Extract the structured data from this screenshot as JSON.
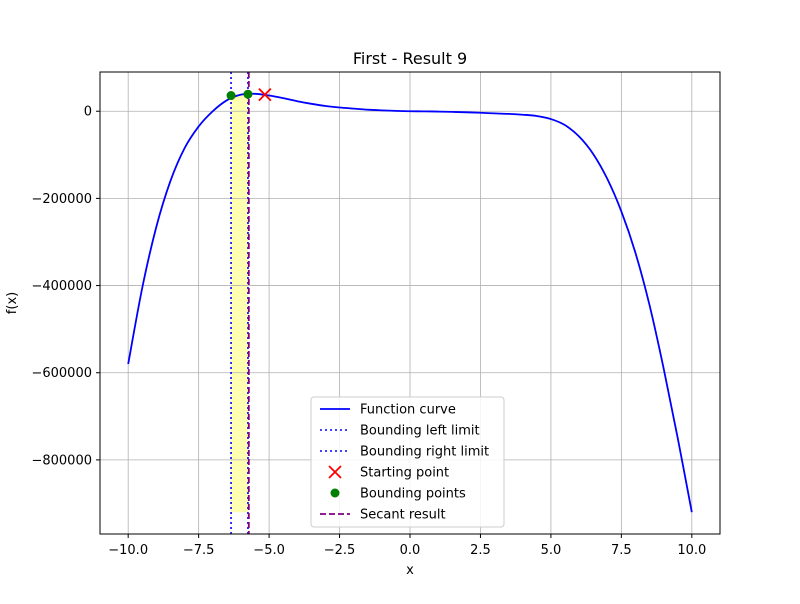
{
  "chart_data": {
    "type": "line",
    "title": "First - Result 9",
    "xlabel": "x",
    "ylabel": "f(x)",
    "xlim": [
      -11.0,
      11.0
    ],
    "ylim": [
      -970000,
      90000
    ],
    "grid": true,
    "legend_position": "lower-center",
    "x_ticks": [
      -10,
      -7.5,
      -5,
      -2.5,
      0,
      2.5,
      5,
      7.5,
      10
    ],
    "x_tick_labels": [
      "−10.0",
      "−7.5",
      "−5.0",
      "−2.5",
      "0.0",
      "2.5",
      "5.0",
      "7.5",
      "10.0"
    ],
    "y_ticks": [
      0,
      -200000,
      -400000,
      -600000,
      -800000
    ],
    "y_tick_labels": [
      "0",
      "−200000",
      "−400000",
      "−600000",
      "−800000"
    ],
    "series": [
      {
        "name": "Function curve",
        "color": "#0000ff",
        "x": [
          -10,
          -9.5,
          -9,
          -8.5,
          -8,
          -7.5,
          -7,
          -6.5,
          -6,
          -5.5,
          -5,
          -4.5,
          -4,
          -3.5,
          -3,
          -2.5,
          -2,
          -1.5,
          -1,
          -0.5,
          0,
          0.5,
          1,
          1.5,
          2,
          2.5,
          3,
          3.5,
          4,
          4.5,
          5,
          5.5,
          6,
          6.5,
          7,
          7.5,
          8,
          8.5,
          9,
          9.5,
          10
        ],
        "y": [
          -580000,
          -405000,
          -265000,
          -160000,
          -85000,
          -35000,
          0,
          25000,
          38000,
          40000,
          36000,
          30000,
          23000,
          17000,
          12000,
          8500,
          6000,
          3500,
          2000,
          800,
          0,
          -300,
          -800,
          -1500,
          -2500,
          -3500,
          -5000,
          -6000,
          -8000,
          -11000,
          -18000,
          -32000,
          -58000,
          -98000,
          -155000,
          -230000,
          -325000,
          -445000,
          -590000,
          -750000,
          -920000
        ]
      }
    ],
    "bounding_region": {
      "x_min": -6.35,
      "x_max": -5.75,
      "color": "#ffff00"
    },
    "bounding_left_limit": {
      "name": "Bounding left limit",
      "x": -6.35,
      "color": "#0000ff"
    },
    "bounding_right_limit": {
      "name": "Bounding right limit",
      "x": -5.75,
      "color": "#0000ff"
    },
    "starting_point": {
      "name": "Starting point",
      "x": -5.15,
      "y": 38000,
      "color": "#ff0000"
    },
    "bounding_points": {
      "name": "Bounding points",
      "color": "#008000",
      "points": [
        {
          "x": -6.35,
          "y": 36000
        },
        {
          "x": -5.75,
          "y": 39000
        }
      ]
    },
    "secant_result": {
      "name": "Secant result",
      "x": -5.72,
      "color": "#800080"
    },
    "legend": [
      {
        "label": "Function curve",
        "kind": "line-solid",
        "color": "#0000ff"
      },
      {
        "label": "Bounding left limit",
        "kind": "line-dotted",
        "color": "#0000ff"
      },
      {
        "label": "Bounding right limit",
        "kind": "line-dotted",
        "color": "#0000ff"
      },
      {
        "label": "Starting point",
        "kind": "x-marker",
        "color": "#ff0000"
      },
      {
        "label": "Bounding points",
        "kind": "dot-marker",
        "color": "#008000"
      },
      {
        "label": "Secant result",
        "kind": "line-dashed",
        "color": "#800080"
      }
    ]
  }
}
